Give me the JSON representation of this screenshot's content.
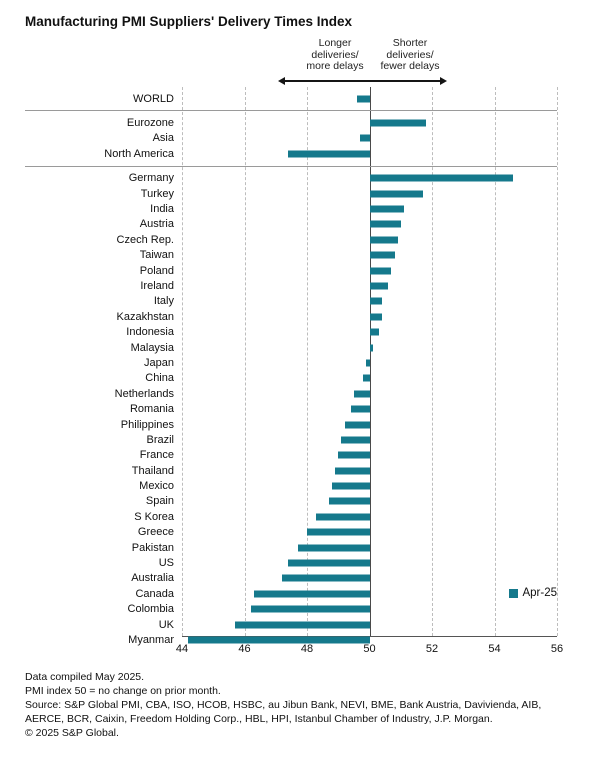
{
  "page": {
    "title": "Manufacturing PMI Suppliers' Delivery Times Index"
  },
  "annotations": {
    "left": "Longer\ndeliveries/\nmore delays",
    "right": "Shorter\ndeliveries/\nfewer delays"
  },
  "legend": {
    "label": "Apr-25",
    "color": "#15798C"
  },
  "footer": {
    "line1": "Data compiled May 2025.",
    "line2": "PMI index 50 = no change on prior month.",
    "line3": "Source: S&P Global PMI, CBA, ISO, HCOB, HSBC, au Jibun Bank, NEVI, BME, Bank Austria, Davivienda, AIB, AERCE, BCR, Caixin, Freedom Holding Corp., HBL, HPI, Istanbul Chamber of Industry, J.P. Morgan.",
    "line4": "© 2025 S&P Global."
  },
  "chart_data": {
    "type": "bar",
    "orientation": "horizontal",
    "title": "Manufacturing PMI Suppliers' Delivery Times Index",
    "baseline": 50,
    "xlim": [
      44,
      56
    ],
    "xticks": [
      44,
      46,
      48,
      50,
      52,
      54,
      56
    ],
    "grid": "dashed-vertical",
    "legend_position": "right-middle",
    "bar_color": "#15798C",
    "series_name": "Apr-25",
    "groups": [
      {
        "name": "world",
        "rows": [
          {
            "label": "WORLD",
            "value": 49.6
          }
        ]
      },
      {
        "name": "regions",
        "rows": [
          {
            "label": "Eurozone",
            "value": 51.8
          },
          {
            "label": "Asia",
            "value": 49.7
          },
          {
            "label": "North America",
            "value": 47.4
          }
        ]
      },
      {
        "name": "countries",
        "rows": [
          {
            "label": "Germany",
            "value": 54.6
          },
          {
            "label": "Turkey",
            "value": 51.7
          },
          {
            "label": "India",
            "value": 51.1
          },
          {
            "label": "Austria",
            "value": 51.0
          },
          {
            "label": "Czech Rep.",
            "value": 50.9
          },
          {
            "label": "Taiwan",
            "value": 50.8
          },
          {
            "label": "Poland",
            "value": 50.7
          },
          {
            "label": "Ireland",
            "value": 50.6
          },
          {
            "label": "Italy",
            "value": 50.4
          },
          {
            "label": "Kazakhstan",
            "value": 50.4
          },
          {
            "label": "Indonesia",
            "value": 50.3
          },
          {
            "label": "Malaysia",
            "value": 50.1
          },
          {
            "label": "Japan",
            "value": 49.9
          },
          {
            "label": "China",
            "value": 49.8
          },
          {
            "label": "Netherlands",
            "value": 49.5
          },
          {
            "label": "Romania",
            "value": 49.4
          },
          {
            "label": "Philippines",
            "value": 49.2
          },
          {
            "label": "Brazil",
            "value": 49.1
          },
          {
            "label": "France",
            "value": 49.0
          },
          {
            "label": "Thailand",
            "value": 48.9
          },
          {
            "label": "Mexico",
            "value": 48.8
          },
          {
            "label": "Spain",
            "value": 48.7
          },
          {
            "label": "S Korea",
            "value": 48.3
          },
          {
            "label": "Greece",
            "value": 48.0
          },
          {
            "label": "Pakistan",
            "value": 47.7
          },
          {
            "label": "US",
            "value": 47.4
          },
          {
            "label": "Australia",
            "value": 47.2
          },
          {
            "label": "Canada",
            "value": 46.3
          },
          {
            "label": "Colombia",
            "value": 46.2
          },
          {
            "label": "UK",
            "value": 45.7
          },
          {
            "label": "Myanmar",
            "value": 44.2
          }
        ]
      }
    ]
  }
}
